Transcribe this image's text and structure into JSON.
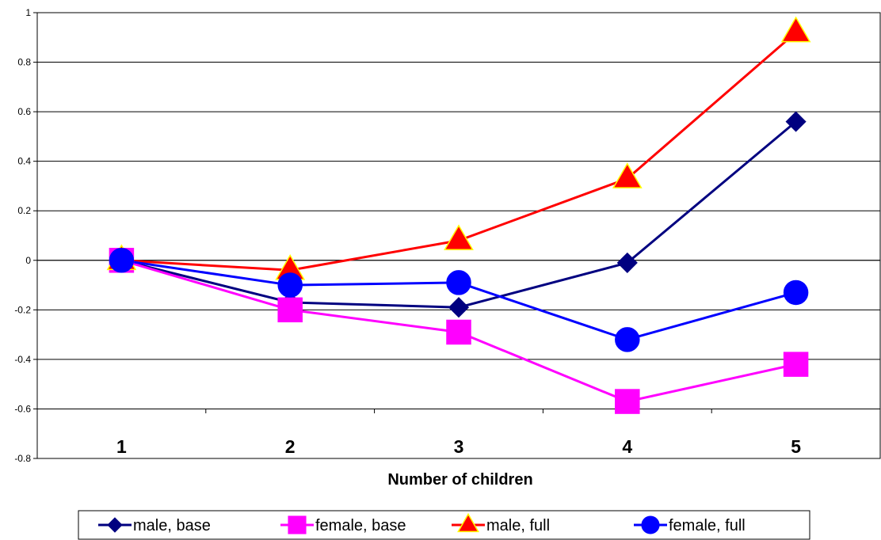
{
  "chart_data": {
    "type": "line",
    "title": "",
    "xlabel": "Number of children",
    "ylabel": "",
    "categories": [
      "1",
      "2",
      "3",
      "4",
      "5"
    ],
    "ylim": [
      -0.8,
      1
    ],
    "yticks": [
      "1",
      "0.8",
      "0.6",
      "0.4",
      "0.2",
      "0",
      "-0.2",
      "-0.4",
      "-0.6",
      "-0.8"
    ],
    "ytick_values": [
      1,
      0.8,
      0.6,
      0.4,
      0.2,
      0,
      -0.2,
      -0.4,
      -0.6,
      -0.8
    ],
    "grid": true,
    "legend_position": "bottom",
    "series": [
      {
        "name": "male, base",
        "values": [
          0,
          -0.17,
          -0.19,
          -0.01,
          0.56
        ],
        "color": "#000080",
        "marker": "diamond",
        "marker_fill": "#000080",
        "marker_stroke": "#000080"
      },
      {
        "name": "female, base",
        "values": [
          0,
          -0.2,
          -0.29,
          -0.57,
          -0.42
        ],
        "color": "#FF00FF",
        "marker": "square",
        "marker_fill": "#FF00FF",
        "marker_stroke": "#FF00FF"
      },
      {
        "name": "male, full",
        "values": [
          0,
          -0.04,
          0.08,
          0.33,
          0.92
        ],
        "color": "#FF0000",
        "marker": "triangle",
        "marker_fill": "#FF0000",
        "marker_stroke": "#FFFF00"
      },
      {
        "name": "female, full",
        "values": [
          0,
          -0.1,
          -0.09,
          -0.32,
          -0.13
        ],
        "color": "#0000FF",
        "marker": "circle",
        "marker_fill": "#0000FF",
        "marker_stroke": "#0000FF"
      }
    ]
  }
}
